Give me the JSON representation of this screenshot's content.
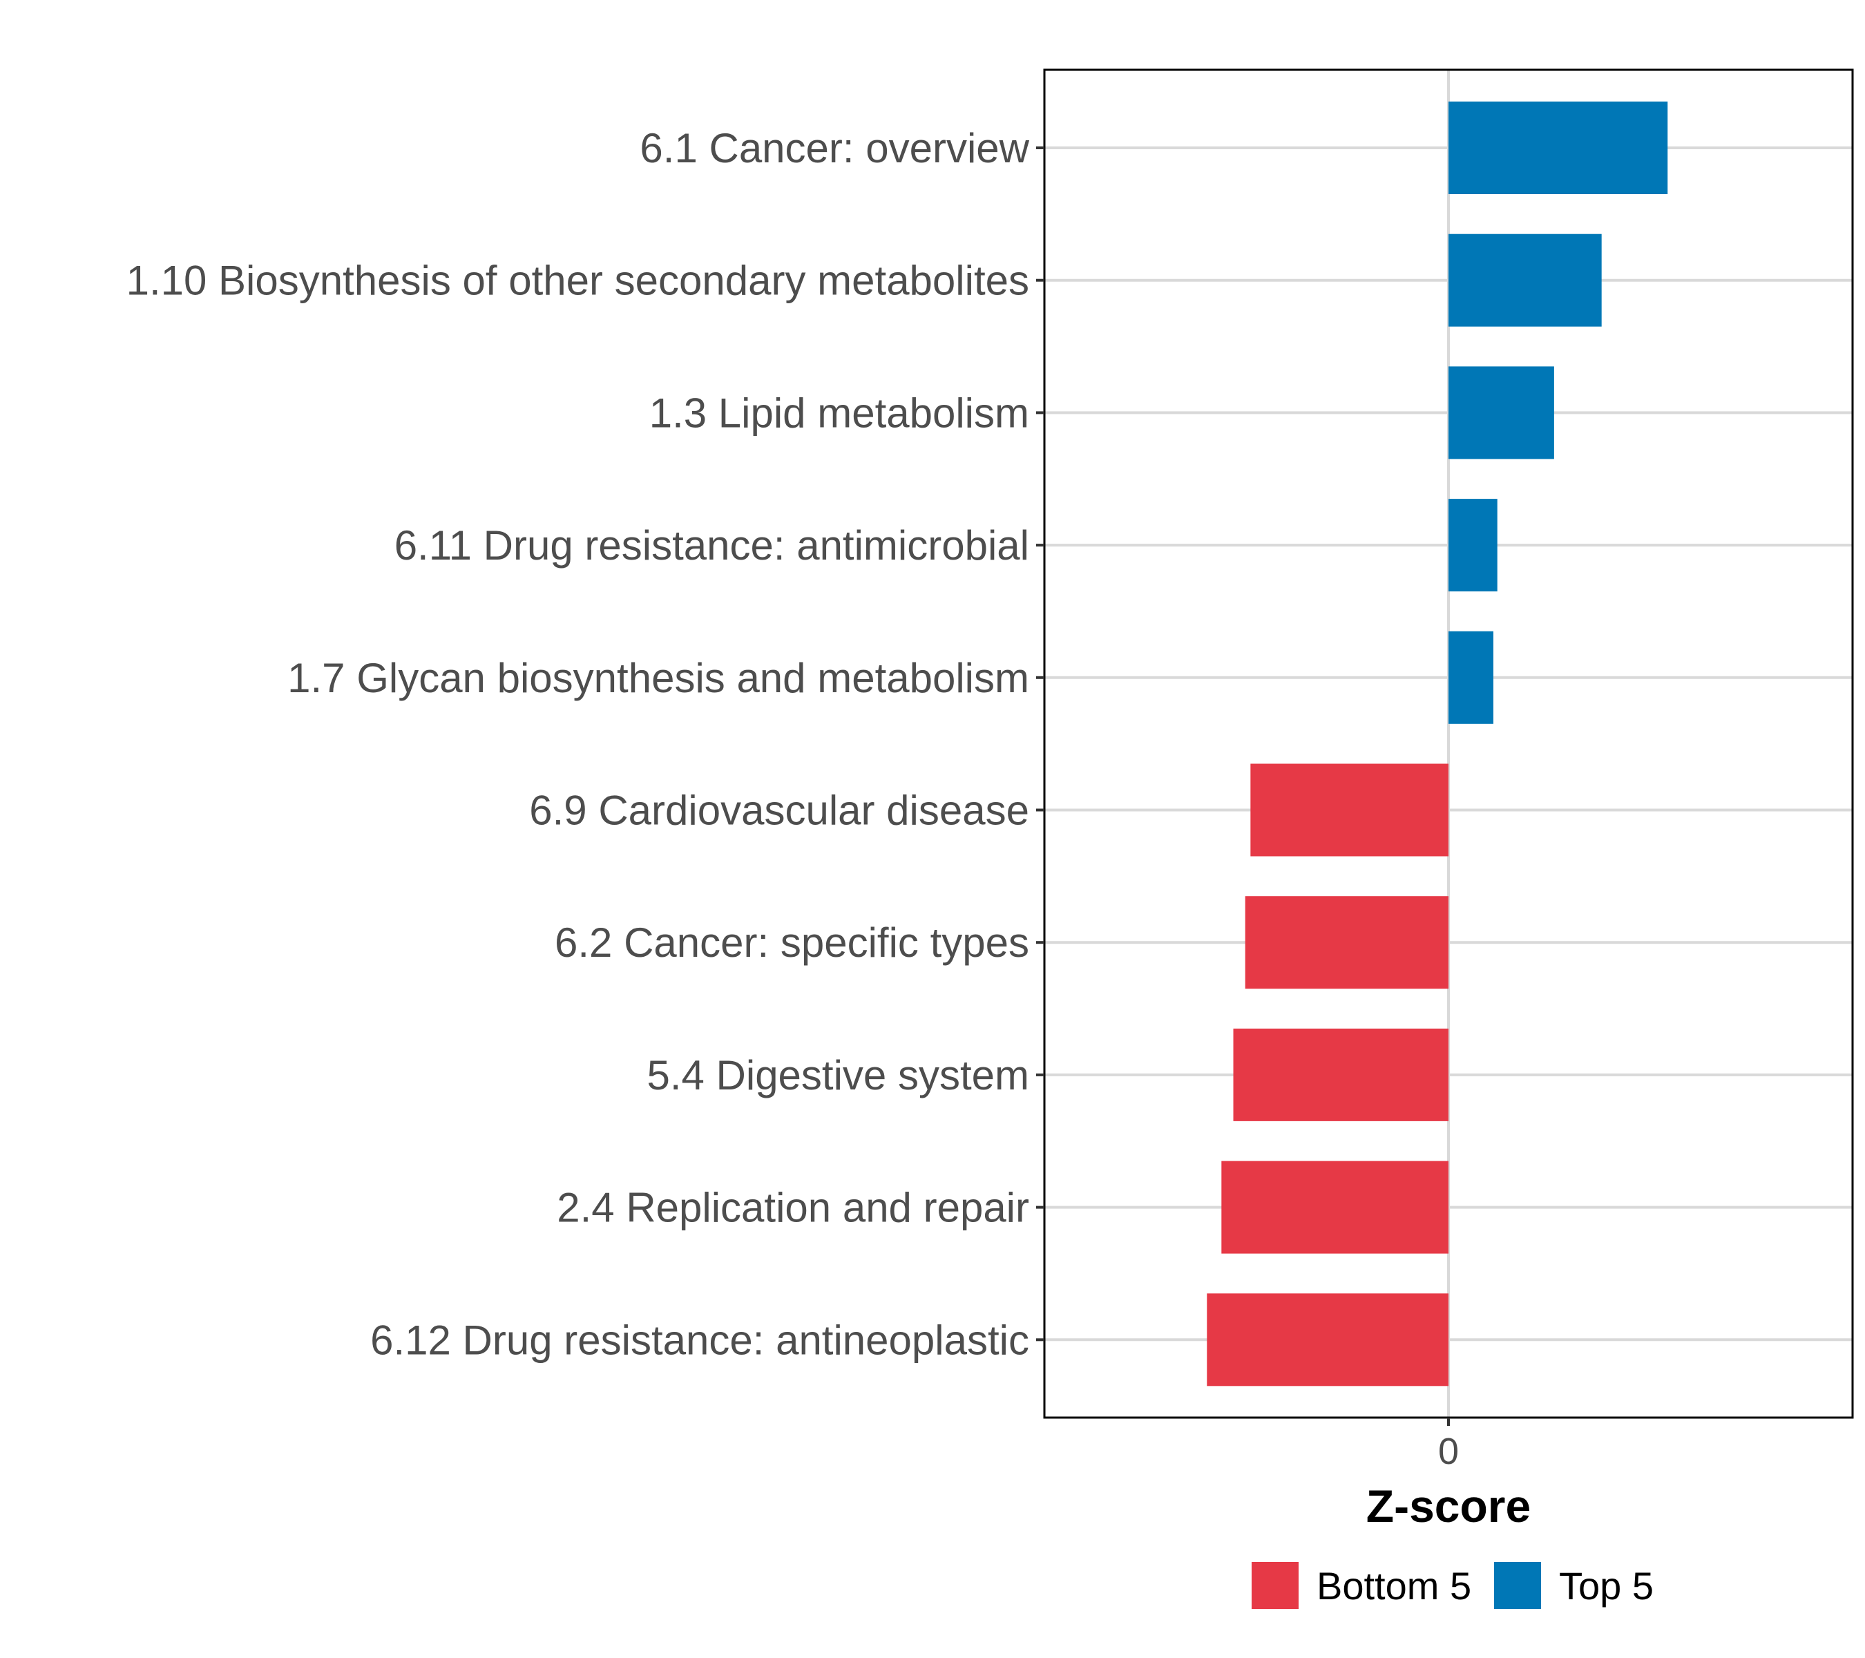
{
  "chart_data": {
    "type": "bar",
    "orientation": "horizontal",
    "title": "",
    "xlabel": "Z-score",
    "ylabel": "",
    "categories": [
      "6.1 Cancer: overview",
      "1.10 Biosynthesis of other secondary metabolites",
      "1.3 Lipid metabolism",
      "6.11 Drug resistance: antimicrobial",
      "1.7 Glycan biosynthesis and metabolism",
      "6.9 Cardiovascular disease",
      "6.2 Cancer: specific types",
      "5.4 Digestive system",
      "2.4 Replication and repair",
      "6.12 Drug resistance: antineoplastic"
    ],
    "values": [
      1.66,
      1.16,
      0.8,
      0.37,
      0.34,
      -1.5,
      -1.54,
      -1.63,
      -1.72,
      -1.83
    ],
    "groups": [
      "Top 5",
      "Top 5",
      "Top 5",
      "Top 5",
      "Top 5",
      "Bottom 5",
      "Bottom 5",
      "Bottom 5",
      "Bottom 5",
      "Bottom 5"
    ],
    "xlim": [
      -3,
      3
    ],
    "xticks": [
      0
    ],
    "xtick_labels": [
      "0"
    ],
    "grid": true,
    "legend": {
      "position": "bottom",
      "entries": [
        {
          "label": "Bottom 5",
          "color": "#E63946"
        },
        {
          "label": "Top 5",
          "color": "#0077B6"
        }
      ]
    },
    "colors": {
      "Top 5": "#0077B6",
      "Bottom 5": "#E63946"
    }
  }
}
